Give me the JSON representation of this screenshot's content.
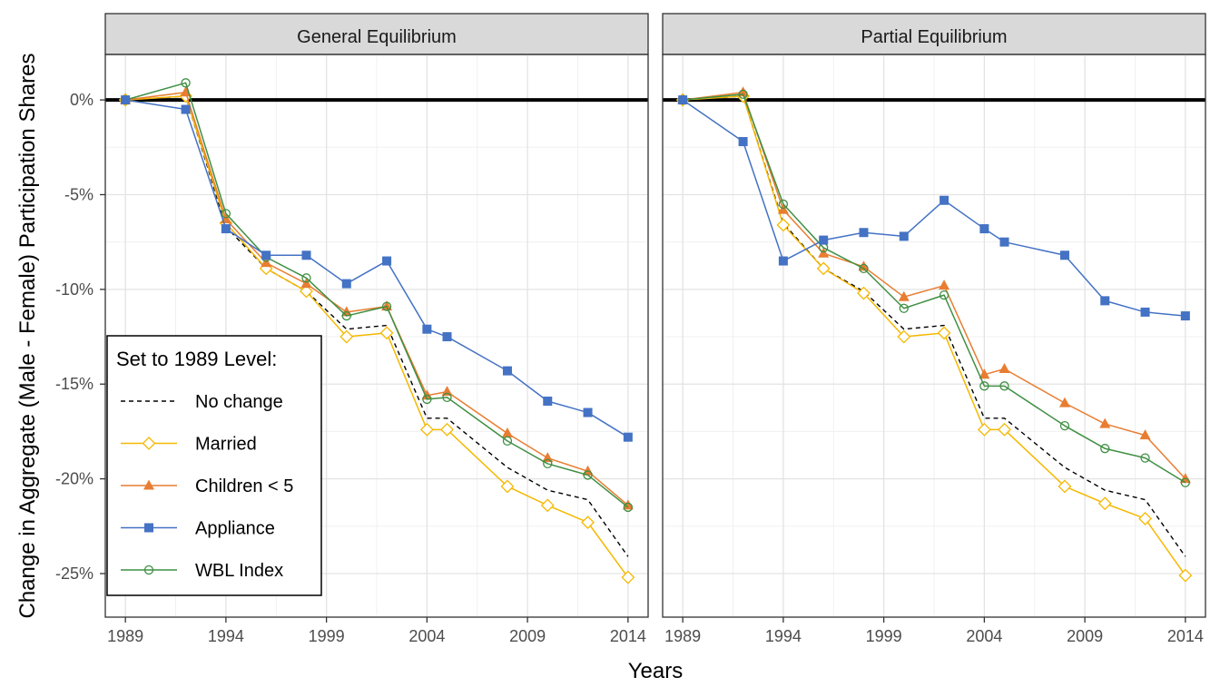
{
  "chart_data": {
    "type": "line",
    "xlabel": "Years",
    "ylabel": "Change in Aggregate (Male - Female) Participation Shares",
    "xlim": [
      1988,
      2015
    ],
    "ylim": [
      -27.3,
      2.4
    ],
    "x_ticks": [
      1989,
      1994,
      1999,
      2004,
      2009,
      2014
    ],
    "y_ticks": [
      0,
      -5,
      -10,
      -15,
      -20,
      -25
    ],
    "y_tick_labels": [
      "0%",
      "-5%",
      "-10%",
      "-15%",
      "-20%",
      "-25%"
    ],
    "x_tick_labels": [
      "1989",
      "1994",
      "1999",
      "2004",
      "2009",
      "2014"
    ],
    "grid": true,
    "reference_line": 0,
    "legend": {
      "title": "Set to 1989 Level:",
      "position": "bottom-left inside first panel",
      "entries": [
        "No change",
        "Married",
        "Children < 5",
        "Appliance",
        "WBL Index"
      ]
    },
    "series_style": {
      "No change": {
        "color": "#000000",
        "dash": true,
        "marker": "none"
      },
      "Married": {
        "color": "#F5B800",
        "marker": "diamond-open"
      },
      "Children < 5": {
        "color": "#E87D32",
        "marker": "triangle"
      },
      "Appliance": {
        "color": "#4472C4",
        "marker": "square"
      },
      "WBL Index": {
        "color": "#3F8F43",
        "marker": "circle-open"
      }
    },
    "x": [
      1989,
      1992,
      1994,
      1996,
      1998,
      2000,
      2002,
      2004,
      2005,
      2008,
      2010,
      2012,
      2014
    ],
    "panels": [
      {
        "title": "General Equilibrium",
        "series": [
          {
            "name": "No change",
            "values": [
              0,
              0.2,
              -6.7,
              -8.9,
              -10.1,
              -12.1,
              -11.9,
              -16.8,
              -16.8,
              -19.4,
              -20.6,
              -21.1,
              -24.1
            ]
          },
          {
            "name": "Married",
            "values": [
              0,
              0.2,
              -6.5,
              -8.9,
              -10.1,
              -12.5,
              -12.3,
              -17.4,
              -17.4,
              -20.4,
              -21.4,
              -22.3,
              -25.2
            ]
          },
          {
            "name": "Children < 5",
            "values": [
              0,
              0.4,
              -6.3,
              -8.6,
              -9.7,
              -11.2,
              -10.9,
              -15.6,
              -15.4,
              -17.6,
              -18.9,
              -19.6,
              -21.4
            ]
          },
          {
            "name": "Appliance",
            "values": [
              0,
              -0.5,
              -6.8,
              -8.2,
              -8.2,
              -9.7,
              -8.5,
              -12.1,
              -12.5,
              -14.3,
              -15.9,
              -16.5,
              -17.8
            ]
          },
          {
            "name": "WBL Index",
            "values": [
              0,
              0.9,
              -6.0,
              -8.3,
              -9.4,
              -11.4,
              -10.9,
              -15.8,
              -15.7,
              -18.0,
              -19.2,
              -19.8,
              -21.5
            ]
          }
        ]
      },
      {
        "title": "Partial Equilibrium",
        "series": [
          {
            "name": "No change",
            "values": [
              0,
              0.2,
              -6.5,
              -8.9,
              -10.1,
              -12.1,
              -11.9,
              -16.8,
              -16.8,
              -19.4,
              -20.6,
              -21.1,
              -24.1
            ]
          },
          {
            "name": "Married",
            "values": [
              0,
              0.2,
              -6.6,
              -8.9,
              -10.2,
              -12.5,
              -12.3,
              -17.4,
              -17.4,
              -20.4,
              -21.3,
              -22.1,
              -25.1
            ]
          },
          {
            "name": "Children < 5",
            "values": [
              0,
              0.4,
              -5.8,
              -8.1,
              -8.8,
              -10.4,
              -9.8,
              -14.5,
              -14.2,
              -16.0,
              -17.1,
              -17.7,
              -20.0
            ]
          },
          {
            "name": "Appliance",
            "values": [
              0,
              -2.2,
              -8.5,
              -7.4,
              -7.0,
              -7.2,
              -5.3,
              -6.8,
              -7.5,
              -8.2,
              -10.6,
              -11.2,
              -11.4
            ]
          },
          {
            "name": "WBL Index",
            "values": [
              0,
              0.3,
              -5.5,
              -7.8,
              -8.9,
              -11.0,
              -10.3,
              -15.1,
              -15.1,
              -17.2,
              -18.4,
              -18.9,
              -20.2
            ]
          }
        ]
      }
    ]
  }
}
